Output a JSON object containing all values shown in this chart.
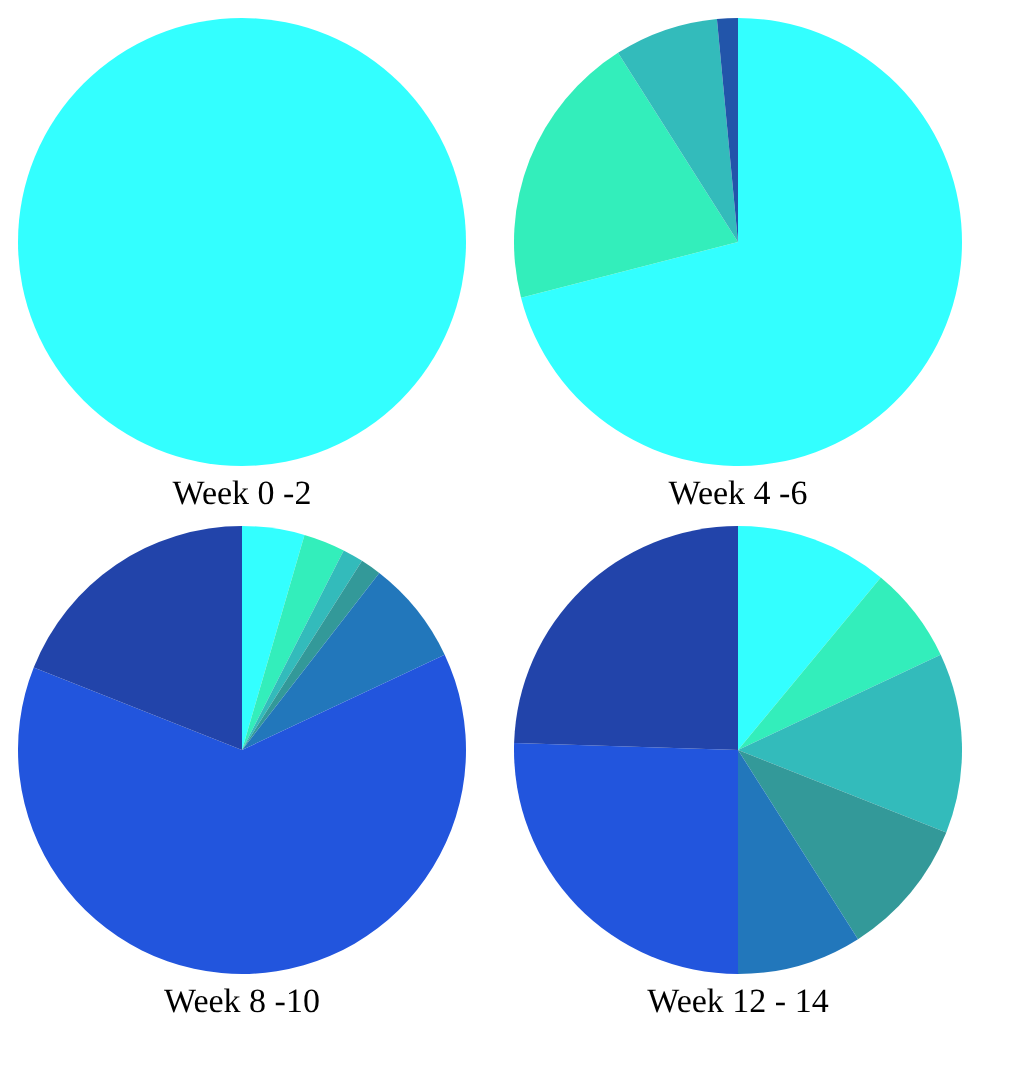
{
  "chart_data": [
    {
      "type": "pie",
      "title": "Week 0 -2",
      "categories": [
        null
      ],
      "values": [
        100
      ],
      "colors": [
        "#33ffff"
      ]
    },
    {
      "type": "pie",
      "title": "Week 4 -6",
      "categories": [
        null,
        null,
        null,
        null
      ],
      "values": [
        71,
        20,
        7.5,
        1.5
      ],
      "colors": [
        "#33ffff",
        "#33eebb",
        "#33bbbb",
        "#2255aa"
      ]
    },
    {
      "type": "pie",
      "title": "Week 8 -10",
      "categories": [
        null,
        null,
        null,
        null,
        null,
        null,
        null
      ],
      "values": [
        4.5,
        3,
        1.5,
        1.5,
        7.5,
        63,
        19
      ],
      "colors": [
        "#33ffff",
        "#33eebb",
        "#33bbbb",
        "#339999",
        "#2277bb",
        "#2255dd",
        "#2244aa"
      ]
    },
    {
      "type": "pie",
      "title": "Week 12 - 14",
      "categories": [
        null,
        null,
        null,
        null,
        null,
        null,
        null
      ],
      "values": [
        11,
        7,
        13,
        10,
        9,
        25.5,
        24.5
      ],
      "colors": [
        "#33ffff",
        "#33eebb",
        "#33bbbb",
        "#339999",
        "#2277bb",
        "#2255dd",
        "#2244aa"
      ]
    }
  ]
}
